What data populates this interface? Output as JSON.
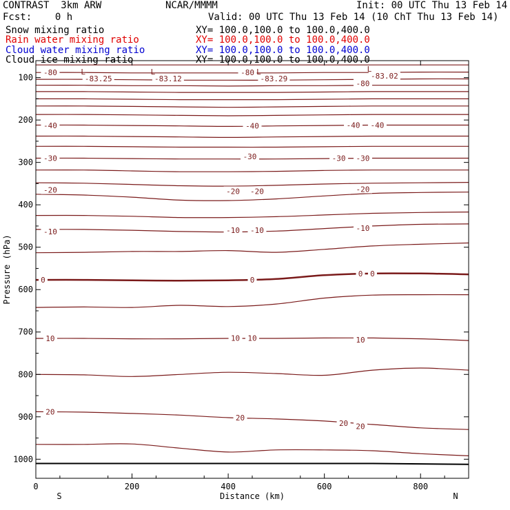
{
  "header": {
    "model": "CONTRAST  3km ARW",
    "org": "NCAR/MMMM",
    "init": "Init: 00 UTC Thu 13 Feb 14",
    "fcst": "Fcst:    0 h",
    "valid": "Valid: 00 UTC Thu 13 Feb 14 (10 ChT Thu 13 Feb 14)"
  },
  "fields": [
    {
      "name": "Snow mixing ratio",
      "xy": "XY= 100.0,100.0 to 100.0,400.0",
      "color": "#000000"
    },
    {
      "name": "Rain water mixing ratio",
      "xy": "XY= 100.0,100.0 to 100.0,400.0",
      "color": "#e00000"
    },
    {
      "name": "Cloud water mixing ratio",
      "xy": "XY= 100.0,100.0 to 100.0,400.0",
      "color": "#0000d0"
    },
    {
      "name": "Cloud ice mixing ratio",
      "xy": "XY= 100.0,100.0 to 100.0,400.0",
      "color": "#000000"
    }
  ],
  "colors": {
    "contour": "#7a1a1a",
    "ground": "#000000"
  },
  "chart_data": {
    "type": "contour",
    "xlabel": "Distance (km)",
    "ylabel": "Pressure (hPa)",
    "xlim": [
      0,
      900
    ],
    "ylim": [
      1045,
      60
    ],
    "x_ticks": [
      0,
      200,
      400,
      600,
      800
    ],
    "y_ticks": [
      100,
      200,
      300,
      400,
      500,
      600,
      700,
      800,
      900,
      1000
    ],
    "endpoints": [
      "S",
      "N"
    ],
    "contour_x": [
      0,
      100,
      200,
      300,
      400,
      500,
      600,
      700,
      800,
      900
    ],
    "contours": [
      {
        "p": [
          70,
          70,
          70,
          70,
          70,
          70,
          70,
          70,
          70,
          70
        ]
      },
      {
        "p": [
          88,
          88,
          89,
          89,
          89,
          89,
          88,
          88,
          87,
          87
        ]
      },
      {
        "p": [
          104,
          104,
          105,
          106,
          106,
          106,
          105,
          104,
          103,
          103
        ]
      },
      {
        "p": [
          118,
          118,
          119,
          119,
          120,
          119,
          119,
          118,
          118,
          118
        ]
      },
      {
        "p": [
          133,
          133,
          134,
          135,
          135,
          135,
          134,
          133,
          133,
          133
        ]
      },
      {
        "p": [
          150,
          150,
          151,
          152,
          152,
          152,
          151,
          150,
          150,
          150
        ]
      },
      {
        "p": [
          167,
          167,
          168,
          169,
          170,
          169,
          168,
          167,
          167,
          167
        ]
      },
      {
        "p": [
          187,
          187,
          188,
          189,
          190,
          189,
          188,
          187,
          187,
          187
        ]
      },
      {
        "p": [
          212,
          212,
          213,
          214,
          215,
          214,
          213,
          212,
          212,
          212
        ]
      },
      {
        "p": [
          238,
          238,
          239,
          240,
          241,
          240,
          239,
          238,
          238,
          238
        ]
      },
      {
        "p": [
          262,
          262,
          263,
          264,
          264,
          264,
          263,
          262,
          262,
          262
        ]
      },
      {
        "p": [
          290,
          290,
          291,
          292,
          292,
          292,
          291,
          290,
          290,
          290
        ]
      },
      {
        "p": [
          318,
          318,
          320,
          322,
          322,
          321,
          319,
          318,
          318,
          318
        ]
      },
      {
        "p": [
          348,
          349,
          352,
          355,
          356,
          354,
          351,
          349,
          348,
          347
        ]
      },
      {
        "p": [
          375,
          377,
          382,
          389,
          390,
          386,
          379,
          373,
          371,
          370
        ]
      },
      {
        "p": [
          425,
          425,
          427,
          430,
          430,
          428,
          424,
          420,
          418,
          417
        ]
      },
      {
        "p": [
          458,
          458,
          460,
          463,
          464,
          462,
          456,
          450,
          446,
          445
        ]
      },
      {
        "p": [
          513,
          512,
          510,
          510,
          508,
          512,
          505,
          497,
          493,
          490
        ]
      },
      {
        "p": [
          577,
          577,
          578,
          579,
          578,
          575,
          566,
          562,
          562,
          564
        ],
        "bold": true
      },
      {
        "p": [
          642,
          641,
          642,
          637,
          640,
          634,
          620,
          613,
          612,
          612
        ]
      },
      {
        "p": [
          715,
          715,
          716,
          716,
          715,
          715,
          714,
          714,
          716,
          720
        ]
      },
      {
        "p": [
          800,
          801,
          805,
          800,
          795,
          798,
          802,
          790,
          785,
          790
        ]
      },
      {
        "p": [
          888,
          889,
          892,
          896,
          902,
          905,
          910,
          918,
          926,
          930
        ]
      },
      {
        "p": [
          965,
          965,
          964,
          974,
          983,
          978,
          978,
          980,
          987,
          992
        ]
      }
    ],
    "ground": {
      "p": [
        1010,
        1010,
        1010,
        1010,
        1010,
        1010,
        1010,
        1010,
        1011,
        1012
      ]
    },
    "labels": [
      {
        "text": "-80",
        "x": 30,
        "p": 88
      },
      {
        "text": "-80",
        "x": 440,
        "p": 88
      },
      {
        "text": "-80",
        "x": 680,
        "p": 114
      },
      {
        "text": "-40",
        "x": 30,
        "p": 213
      },
      {
        "text": "-40",
        "x": 450,
        "p": 214
      },
      {
        "text": "-40",
        "x": 660,
        "p": 212
      },
      {
        "text": "-40",
        "x": 710,
        "p": 212
      },
      {
        "text": "-30",
        "x": 30,
        "p": 290
      },
      {
        "text": "-30",
        "x": 445,
        "p": 286
      },
      {
        "text": "-30",
        "x": 630,
        "p": 290
      },
      {
        "text": "-30",
        "x": 680,
        "p": 290
      },
      {
        "text": "-20",
        "x": 30,
        "p": 365
      },
      {
        "text": "-20",
        "x": 410,
        "p": 368
      },
      {
        "text": "-20",
        "x": 460,
        "p": 368
      },
      {
        "text": "-20",
        "x": 680,
        "p": 363
      },
      {
        "text": "-10",
        "x": 30,
        "p": 463
      },
      {
        "text": "-10",
        "x": 410,
        "p": 460
      },
      {
        "text": "-10",
        "x": 460,
        "p": 460
      },
      {
        "text": "-10",
        "x": 680,
        "p": 455
      },
      {
        "text": "0",
        "x": 15,
        "p": 577
      },
      {
        "text": "0",
        "x": 450,
        "p": 577
      },
      {
        "text": "0",
        "x": 675,
        "p": 562
      },
      {
        "text": "0",
        "x": 700,
        "p": 562
      },
      {
        "text": "10",
        "x": 30,
        "p": 715
      },
      {
        "text": "10",
        "x": 415,
        "p": 714
      },
      {
        "text": "10",
        "x": 450,
        "p": 714
      },
      {
        "text": "10",
        "x": 675,
        "p": 718
      },
      {
        "text": "20",
        "x": 30,
        "p": 888
      },
      {
        "text": "20",
        "x": 425,
        "p": 902
      },
      {
        "text": "20",
        "x": 640,
        "p": 915
      },
      {
        "text": "20",
        "x": 675,
        "p": 922
      }
    ],
    "lows": [
      {
        "text": "-83.25",
        "x": 130,
        "p": 102
      },
      {
        "text": "-83.12",
        "x": 275,
        "p": 102
      },
      {
        "text": "-83.29",
        "x": 495,
        "p": 102
      },
      {
        "text": "-83.02",
        "x": 725,
        "p": 96
      }
    ],
    "low_mark": "L"
  }
}
